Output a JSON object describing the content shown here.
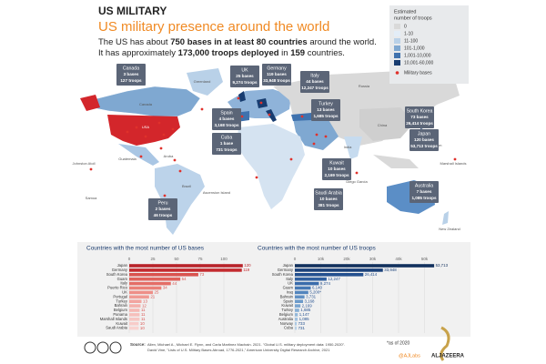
{
  "header": {
    "kicker": "US MILITARY",
    "title": "US military presence around the world",
    "desc": [
      [
        "The US has about ",
        "750 bases in at least 80 countries",
        " around the world."
      ],
      [
        "It has approximately ",
        "173,000 troops deployed",
        " in ",
        "159",
        " countries."
      ]
    ]
  },
  "legend": {
    "title": [
      "Estimated",
      "number of troops"
    ],
    "items": [
      {
        "label": "0",
        "color": "#d9d9d9"
      },
      {
        "label": "1-10",
        "color": "#e3edf7"
      },
      {
        "label": "11-100",
        "color": "#b9d1e8"
      },
      {
        "label": "101-1,000",
        "color": "#7fa8d1"
      },
      {
        "label": "1,001-10,000",
        "color": "#3f72ae"
      },
      {
        "label": "10,001-60,000",
        "color": "#173c70"
      }
    ],
    "bases_label": "Military bases",
    "bases_color": "#e0312b"
  },
  "callouts": [
    {
      "name": "Canada",
      "bases": "3 bases",
      "troops": "127 troops"
    },
    {
      "name": "UK",
      "bases": "25 bases",
      "troops": "9,274 troops"
    },
    {
      "name": "Germany",
      "bases": "119 bases",
      "troops": "33,948 troops"
    },
    {
      "name": "Italy",
      "bases": "44 bases",
      "troops": "12,247 troops"
    },
    {
      "name": "Spain",
      "bases": "4 bases",
      "troops": "3,168 troops"
    },
    {
      "name": "Cuba",
      "bases": "1 base",
      "troops": "731 troops"
    },
    {
      "name": "Turkey",
      "bases": "13 bases",
      "troops": "1,685 troops"
    },
    {
      "name": "South Korea",
      "bases": "73 bases",
      "troops": "26,414 troops"
    },
    {
      "name": "Japan",
      "bases": "120 bases",
      "troops": "53,713 troops"
    },
    {
      "name": "Kuwait",
      "bases": "10 bases",
      "troops": "2,169 troops"
    },
    {
      "name": "Saudi Arabia",
      "bases": "10 bases",
      "troops": "381 troops"
    },
    {
      "name": "Australia",
      "bases": "7 bases",
      "troops": "1,085 troops"
    },
    {
      "name": "Peru",
      "bases": "2 bases",
      "troops": "46 troops"
    }
  ],
  "map_labels": [
    "Greenland",
    "Canada",
    "USA",
    "Johnston Atoll",
    "Guatemala",
    "Aruba",
    "Brazil",
    "Samoa",
    "Ascension Island",
    "Russia",
    "China",
    "India",
    "Diego Garcia",
    "Guam",
    "Marshall Islands",
    "New Zealand"
  ],
  "chart_data": [
    {
      "type": "bar",
      "title": "Countries with the most number of US bases",
      "categories": [
        "Japan",
        "Germany",
        "South Korea",
        "Guam",
        "Italy",
        "Puerto Rico",
        "UK",
        "Portugal",
        "Turkey",
        "Bahrain",
        "Belgium",
        "Panama",
        "Marshall Islands",
        "Kuwait",
        "Saudi Arabia"
      ],
      "values": [
        120,
        119,
        73,
        54,
        44,
        34,
        25,
        21,
        13,
        12,
        11,
        11,
        11,
        10,
        10
      ],
      "colors": [
        "#b8232a",
        "#c42b2f",
        "#d9534f",
        "#e0605a",
        "#e46d66",
        "#ea8078",
        "#ee8f88",
        "#f09a93",
        "#f2a5a0",
        "#f4b0ab",
        "#f5b8b3",
        "#f6bfbb",
        "#f7c6c2",
        "#f8ccc9",
        "#f9d3d0"
      ],
      "xlim": [
        0,
        125
      ],
      "xticks": [
        0,
        25,
        50,
        75,
        100
      ]
    },
    {
      "type": "bar",
      "title": "Countries with the most number of US troops",
      "categories": [
        "Japan",
        "Germany",
        "South Korea",
        "Italy",
        "UK",
        "Guam",
        "Iraq",
        "Bahrain",
        "Spain",
        "Kuwait",
        "Turkey",
        "Belgium",
        "Australia",
        "Norway",
        "Cuba"
      ],
      "values": [
        53713,
        33948,
        26414,
        12247,
        9274,
        6140,
        5200,
        3731,
        3168,
        2169,
        1685,
        1147,
        1085,
        733,
        731
      ],
      "value_labels": [
        "53,713",
        "33,948",
        "26,414",
        "12,247",
        "9,274",
        "6,140",
        "5,200*",
        "3,731",
        "3,168",
        "2,169",
        "1,685",
        "1,147",
        "1,085",
        "733",
        "731"
      ],
      "colors": [
        "#12315e",
        "#1b417a",
        "#24508f",
        "#2f5f9f",
        "#3a6cab",
        "#4679b5",
        "#5385bd",
        "#6090c4",
        "#6d9bca",
        "#7aa5d0",
        "#87afd5",
        "#93b8da",
        "#a0c1df",
        "#acc9e3",
        "#b8d1e7"
      ],
      "xlim": [
        0,
        60000
      ],
      "xticks": [
        0,
        {
          "value": 10000,
          "label": "10k"
        },
        {
          "value": 20000,
          "label": "20k"
        },
        {
          "value": 30000,
          "label": "30k"
        },
        {
          "value": 40000,
          "label": "40k"
        },
        {
          "value": 50000,
          "label": "50k"
        }
      ]
    }
  ],
  "footer": {
    "source_label": "Source:",
    "source": [
      "Allen, Michael A., Michael E. Flynn, and Carla Martinez Machain. 2021. \"Global U.S. military deployment data: 1950-2020\".",
      "David Vine, \"Lists of U.S. Military Bases Abroad, 1776-2021,\" American University Digital Research Archive, 2021"
    ],
    "note": "*as of 2020",
    "handle": "@AJLabs",
    "brand": "ALJAZEERA"
  }
}
